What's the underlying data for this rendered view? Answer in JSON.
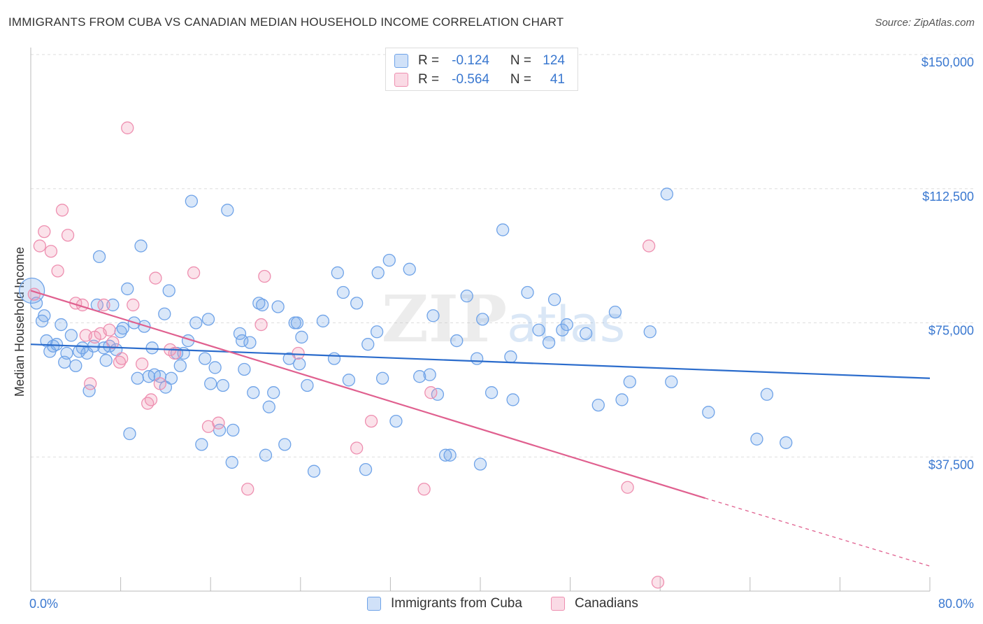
{
  "title": "IMMIGRANTS FROM CUBA VS CANADIAN MEDIAN HOUSEHOLD INCOME CORRELATION CHART",
  "source": "Source: ZipAtlas.com",
  "watermark": "ZIPatlas",
  "colors": {
    "blue": "#6fa3e8",
    "blue_fill": "rgba(120,170,235,0.28)",
    "blue_line": "#2b6ccc",
    "pink": "#ee8fb0",
    "pink_fill": "rgba(240,150,180,0.28)",
    "pink_line": "#e0608f",
    "axis_text": "#3a78d0",
    "grid": "#dddddd"
  },
  "legend_top": [
    {
      "r_label": "R =",
      "r_value": "-0.124",
      "n_label": "N =",
      "n_value": "124",
      "swatch": "blue"
    },
    {
      "r_label": "R =",
      "r_value": "-0.564",
      "n_label": "N =",
      "n_value": "41",
      "swatch": "pink"
    }
  ],
  "legend_bottom": [
    {
      "label": "Immigrants from Cuba",
      "swatch": "blue"
    },
    {
      "label": "Canadians",
      "swatch": "pink"
    }
  ],
  "chart_data": {
    "type": "scatter",
    "xlabel": "",
    "ylabel": "Median Household Income",
    "xlim": [
      0,
      80
    ],
    "ylim": [
      0,
      150000
    ],
    "x_tick_labels": [
      "0.0%",
      "80.0%"
    ],
    "y_ticks": [
      37500,
      75000,
      112500,
      150000
    ],
    "y_tick_labels": [
      "$37,500",
      "$75,000",
      "$112,500",
      "$150,000"
    ],
    "grid": true,
    "legend_position": "top-center",
    "series": [
      {
        "name": "Immigrants from Cuba",
        "color": "blue",
        "trend": {
          "x": [
            0,
            80
          ],
          "y": [
            69000,
            59500
          ],
          "dashed_from": null
        },
        "points": [
          [
            0.1,
            84000
          ],
          [
            0.5,
            80500
          ],
          [
            1.0,
            75500
          ],
          [
            1.2,
            77000
          ],
          [
            1.4,
            70000
          ],
          [
            1.7,
            67000
          ],
          [
            2.0,
            68500
          ],
          [
            2.3,
            69000
          ],
          [
            2.7,
            74500
          ],
          [
            3.0,
            64000
          ],
          [
            3.2,
            66500
          ],
          [
            3.6,
            71500
          ],
          [
            4.0,
            63000
          ],
          [
            4.3,
            67000
          ],
          [
            4.6,
            68000
          ],
          [
            5.0,
            66500
          ],
          [
            5.2,
            56000
          ],
          [
            5.6,
            68500
          ],
          [
            5.9,
            80000
          ],
          [
            6.1,
            93500
          ],
          [
            6.5,
            68000
          ],
          [
            6.7,
            64500
          ],
          [
            7.0,
            68500
          ],
          [
            7.3,
            80000
          ],
          [
            7.6,
            67500
          ],
          [
            8.0,
            72500
          ],
          [
            8.2,
            73500
          ],
          [
            8.6,
            84500
          ],
          [
            8.8,
            44000
          ],
          [
            9.2,
            75000
          ],
          [
            9.5,
            59500
          ],
          [
            9.8,
            96500
          ],
          [
            10.1,
            74000
          ],
          [
            10.5,
            60000
          ],
          [
            10.8,
            68000
          ],
          [
            11.0,
            60500
          ],
          [
            11.5,
            60000
          ],
          [
            11.9,
            77500
          ],
          [
            12.0,
            57000
          ],
          [
            12.3,
            84000
          ],
          [
            12.5,
            59500
          ],
          [
            13.0,
            66500
          ],
          [
            13.3,
            63000
          ],
          [
            13.6,
            66500
          ],
          [
            14.0,
            70000
          ],
          [
            14.3,
            109000
          ],
          [
            14.7,
            75000
          ],
          [
            15.2,
            41000
          ],
          [
            15.5,
            65000
          ],
          [
            15.8,
            76000
          ],
          [
            16.0,
            58000
          ],
          [
            16.4,
            62500
          ],
          [
            16.8,
            45000
          ],
          [
            17.1,
            57500
          ],
          [
            17.5,
            106500
          ],
          [
            17.9,
            36000
          ],
          [
            18.0,
            45000
          ],
          [
            18.6,
            72000
          ],
          [
            18.8,
            70000
          ],
          [
            19.0,
            62000
          ],
          [
            19.5,
            69500
          ],
          [
            19.8,
            55500
          ],
          [
            20.3,
            80500
          ],
          [
            20.6,
            80000
          ],
          [
            20.9,
            38000
          ],
          [
            21.2,
            51500
          ],
          [
            21.6,
            55500
          ],
          [
            22.0,
            79500
          ],
          [
            22.6,
            41000
          ],
          [
            23.0,
            65000
          ],
          [
            23.5,
            75000
          ],
          [
            23.7,
            75000
          ],
          [
            23.9,
            63500
          ],
          [
            24.1,
            71000
          ],
          [
            24.6,
            57500
          ],
          [
            25.2,
            33500
          ],
          [
            26.0,
            75500
          ],
          [
            27.0,
            65000
          ],
          [
            27.3,
            89000
          ],
          [
            27.8,
            83500
          ],
          [
            28.3,
            59000
          ],
          [
            29.0,
            80500
          ],
          [
            29.8,
            34000
          ],
          [
            30.0,
            69000
          ],
          [
            30.8,
            72500
          ],
          [
            30.9,
            89000
          ],
          [
            31.3,
            59500
          ],
          [
            31.9,
            92500
          ],
          [
            32.5,
            47500
          ],
          [
            33.7,
            90000
          ],
          [
            34.6,
            60000
          ],
          [
            35.5,
            60500
          ],
          [
            35.8,
            77000
          ],
          [
            36.2,
            55000
          ],
          [
            36.9,
            38000
          ],
          [
            37.3,
            38000
          ],
          [
            37.9,
            70000
          ],
          [
            38.8,
            82500
          ],
          [
            39.7,
            65000
          ],
          [
            40.0,
            35500
          ],
          [
            40.2,
            76000
          ],
          [
            41.0,
            55500
          ],
          [
            42.0,
            101000
          ],
          [
            42.7,
            65500
          ],
          [
            42.9,
            53500
          ],
          [
            44.2,
            83500
          ],
          [
            45.2,
            73000
          ],
          [
            46.1,
            69500
          ],
          [
            46.6,
            81500
          ],
          [
            47.3,
            73000
          ],
          [
            47.7,
            74500
          ],
          [
            49.4,
            72000
          ],
          [
            50.5,
            52000
          ],
          [
            52.0,
            78000
          ],
          [
            52.6,
            53500
          ],
          [
            53.3,
            58500
          ],
          [
            55.1,
            72500
          ],
          [
            56.6,
            111000
          ],
          [
            57.0,
            58500
          ],
          [
            60.3,
            50000
          ],
          [
            64.6,
            42500
          ],
          [
            65.5,
            55000
          ],
          [
            67.2,
            41500
          ]
        ]
      },
      {
        "name": "Canadians",
        "color": "pink",
        "trend": {
          "x": [
            0,
            60,
            80
          ],
          "y": [
            84000,
            26000,
            7000
          ],
          "dashed_from": 60
        },
        "points": [
          [
            0.3,
            83000
          ],
          [
            0.8,
            96500
          ],
          [
            1.2,
            100500
          ],
          [
            1.8,
            95000
          ],
          [
            2.4,
            89500
          ],
          [
            2.8,
            106500
          ],
          [
            3.3,
            99500
          ],
          [
            4.0,
            80500
          ],
          [
            4.6,
            80000
          ],
          [
            4.9,
            71500
          ],
          [
            5.3,
            58000
          ],
          [
            5.7,
            71000
          ],
          [
            6.2,
            72000
          ],
          [
            6.5,
            80000
          ],
          [
            7.0,
            73000
          ],
          [
            7.3,
            69500
          ],
          [
            7.9,
            64000
          ],
          [
            8.1,
            65000
          ],
          [
            8.6,
            129500
          ],
          [
            9.1,
            80000
          ],
          [
            9.9,
            63500
          ],
          [
            10.4,
            52500
          ],
          [
            10.7,
            53500
          ],
          [
            11.1,
            87500
          ],
          [
            11.5,
            58000
          ],
          [
            12.4,
            67500
          ],
          [
            12.8,
            66500
          ],
          [
            14.5,
            89000
          ],
          [
            15.8,
            46000
          ],
          [
            16.7,
            47000
          ],
          [
            19.3,
            28500
          ],
          [
            20.5,
            74500
          ],
          [
            20.8,
            88000
          ],
          [
            23.8,
            66500
          ],
          [
            29.0,
            40000
          ],
          [
            30.3,
            47500
          ],
          [
            35.0,
            28500
          ],
          [
            35.6,
            55500
          ],
          [
            53.1,
            29000
          ],
          [
            55.0,
            96500
          ],
          [
            55.8,
            2500
          ]
        ]
      }
    ]
  }
}
